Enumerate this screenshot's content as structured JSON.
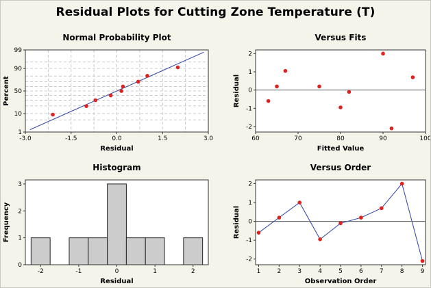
{
  "title": "Residual Plots for Cutting Zone Temperature (T)",
  "colors": {
    "background": "#f4f4ea",
    "plot_area": "#ffffff",
    "points": "#e0211d",
    "line": "#3a4fa8",
    "bars": "#cccccc",
    "grid": "#c8c8c8"
  },
  "chart_data": [
    {
      "id": "normal-probability",
      "type": "scatter",
      "title": "Normal Probability Plot",
      "xlabel": "Residual",
      "ylabel": "Percent",
      "xlim": [
        -3.0,
        3.0
      ],
      "ylim": [
        1,
        99
      ],
      "y_scale": "normal-probability",
      "xticks": [
        "-3.0",
        "-1.5",
        "0.0",
        "1.5",
        "3.0"
      ],
      "yticks": [
        "1",
        "10",
        "50",
        "90",
        "99"
      ],
      "grid": true,
      "fit_line": {
        "x": [
          -2.85,
          2.85
        ],
        "y": [
          1.4,
          98.6
        ]
      },
      "points": [
        {
          "x": -2.1,
          "y": 9.0
        },
        {
          "x": -1.0,
          "y": 19.5
        },
        {
          "x": -0.7,
          "y": 30.0
        },
        {
          "x": -0.2,
          "y": 40.0
        },
        {
          "x": 0.15,
          "y": 50.0
        },
        {
          "x": 0.2,
          "y": 60.0
        },
        {
          "x": 0.7,
          "y": 70.0
        },
        {
          "x": 1.0,
          "y": 80.5
        },
        {
          "x": 2.0,
          "y": 91.0
        }
      ]
    },
    {
      "id": "versus-fits",
      "type": "scatter",
      "title": "Versus Fits",
      "xlabel": "Fitted Value",
      "ylabel": "Residual",
      "xlim": [
        60,
        100
      ],
      "ylim": [
        -2.3,
        2.2
      ],
      "xticks": [
        "60",
        "70",
        "80",
        "90",
        "100"
      ],
      "yticks": [
        "-2",
        "-1",
        "0",
        "1",
        "2"
      ],
      "reference_line": 0,
      "points": [
        {
          "x": 63,
          "y": -0.6
        },
        {
          "x": 65,
          "y": 0.2
        },
        {
          "x": 67,
          "y": 1.05
        },
        {
          "x": 75,
          "y": 0.2
        },
        {
          "x": 80,
          "y": -0.95
        },
        {
          "x": 82,
          "y": -0.1
        },
        {
          "x": 90,
          "y": 2.0
        },
        {
          "x": 92,
          "y": -2.1
        },
        {
          "x": 97,
          "y": 0.7
        }
      ]
    },
    {
      "id": "histogram",
      "type": "bar",
      "title": "Histogram",
      "xlabel": "Residual",
      "ylabel": "Frequency",
      "xlim": [
        -2.4,
        2.4
      ],
      "ylim": [
        0,
        3.15
      ],
      "xticks": [
        "-2",
        "-1",
        "0",
        "1",
        "2"
      ],
      "yticks": [
        "0",
        "1",
        "2",
        "3"
      ],
      "bin_width": 0.5,
      "bins": [
        {
          "center": -2.0,
          "count": 1
        },
        {
          "center": -1.5,
          "count": 0
        },
        {
          "center": -1.0,
          "count": 1
        },
        {
          "center": -0.5,
          "count": 1
        },
        {
          "center": 0.0,
          "count": 3
        },
        {
          "center": 0.5,
          "count": 1
        },
        {
          "center": 1.0,
          "count": 1
        },
        {
          "center": 1.5,
          "count": 0
        },
        {
          "center": 2.0,
          "count": 1
        }
      ]
    },
    {
      "id": "versus-order",
      "type": "line",
      "title": "Versus Order",
      "xlabel": "Observation Order",
      "ylabel": "Residual",
      "xlim": [
        0.85,
        9.15
      ],
      "ylim": [
        -2.3,
        2.2
      ],
      "xticks": [
        "1",
        "2",
        "3",
        "4",
        "5",
        "6",
        "7",
        "8",
        "9"
      ],
      "yticks": [
        "-2",
        "-1",
        "0",
        "1",
        "2"
      ],
      "reference_line": 0,
      "points": [
        {
          "x": 1,
          "y": -0.6
        },
        {
          "x": 2,
          "y": 0.2
        },
        {
          "x": 3,
          "y": 1.0
        },
        {
          "x": 4,
          "y": -0.95
        },
        {
          "x": 5,
          "y": -0.1
        },
        {
          "x": 6,
          "y": 0.2
        },
        {
          "x": 7,
          "y": 0.7
        },
        {
          "x": 8,
          "y": 2.0
        },
        {
          "x": 9,
          "y": -2.1
        }
      ]
    }
  ]
}
